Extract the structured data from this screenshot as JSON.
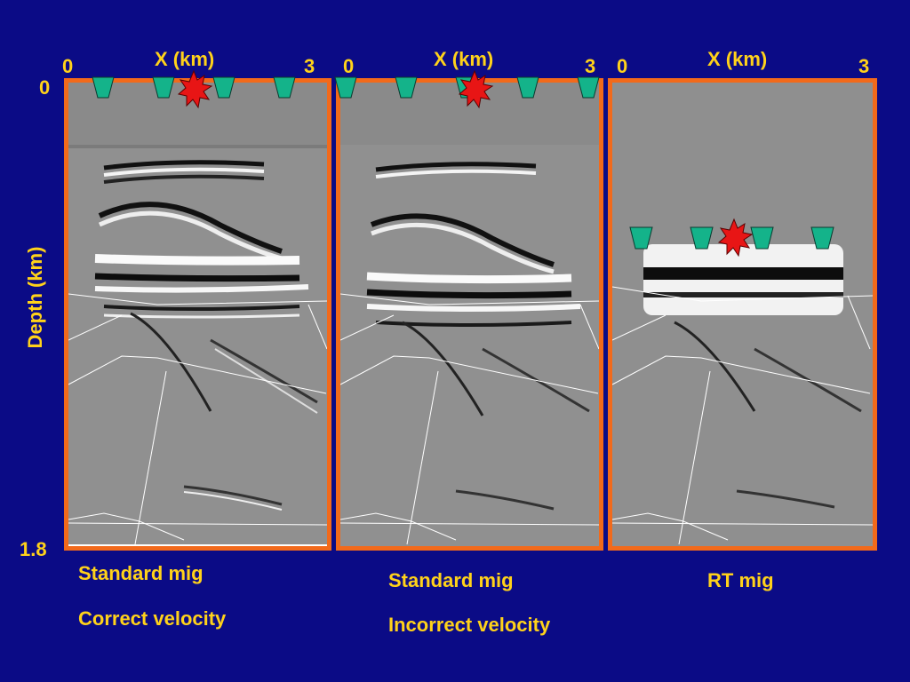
{
  "axis": {
    "x_title": "X (km)",
    "x_min": "0",
    "x_max": "3",
    "y_title": "Depth (km)",
    "y_min": "0",
    "y_max": "1.8"
  },
  "panels": [
    {
      "caption_line1": "Standard mig",
      "caption_line2": "Correct velocity"
    },
    {
      "caption_line1": "Standard mig",
      "caption_line2": "Incorrect velocity"
    },
    {
      "caption_line1": "RT mig",
      "caption_line2": ""
    }
  ],
  "colors": {
    "background": "#0b0b86",
    "frame": "#f26a1b",
    "label_text": "#ffd21a",
    "receiver": "#14b38a",
    "source": "#e81515",
    "image_gray": "#8e8e8e"
  },
  "icons": {
    "receiver": "receiver-trapezoid-icon",
    "source": "source-star-burst-icon"
  }
}
